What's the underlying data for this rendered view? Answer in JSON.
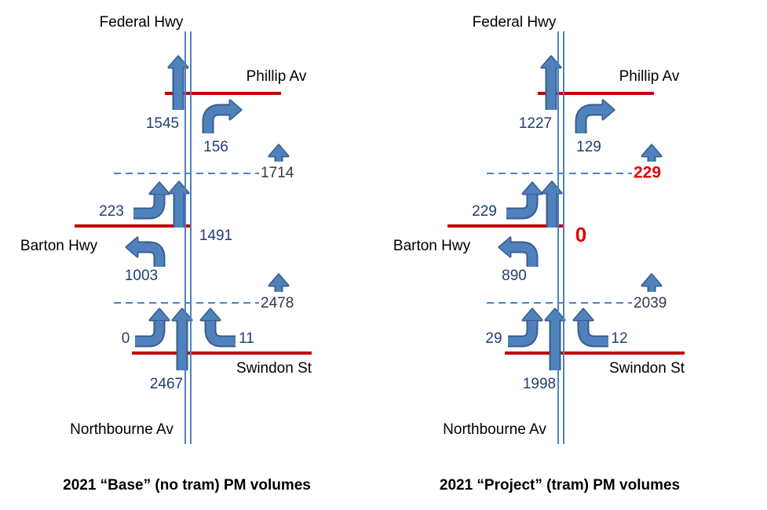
{
  "panels": [
    {
      "roads": {
        "north": "Federal Hwy",
        "phillip": "Phillip Av",
        "barton": "Barton Hwy",
        "swindon": "Swindon St",
        "south": "Northbourne Av"
      },
      "volumes": {
        "north_through": 1545,
        "phillip_right": 156,
        "section1": 1714,
        "barton_in": 223,
        "through_mid": 1491,
        "barton_out": 1003,
        "section2": 2478,
        "swindon_left": 0,
        "swindon_right": 11,
        "south_through": 2467
      },
      "caption": "2021 “Base” (no tram) PM volumes"
    },
    {
      "roads": {
        "north": "Federal Hwy",
        "phillip": "Phillip Av",
        "barton": "Barton Hwy",
        "swindon": "Swindon St",
        "south": "Northbourne Av"
      },
      "volumes": {
        "north_through": 1227,
        "phillip_right": 129,
        "section1": 229,
        "barton_in": 229,
        "through_mid": 0,
        "barton_out": 890,
        "section2": 2039,
        "swindon_left": 29,
        "swindon_right": 12,
        "south_through": 1998
      },
      "caption": "2021 “Project” (tram) PM volumes"
    }
  ]
}
